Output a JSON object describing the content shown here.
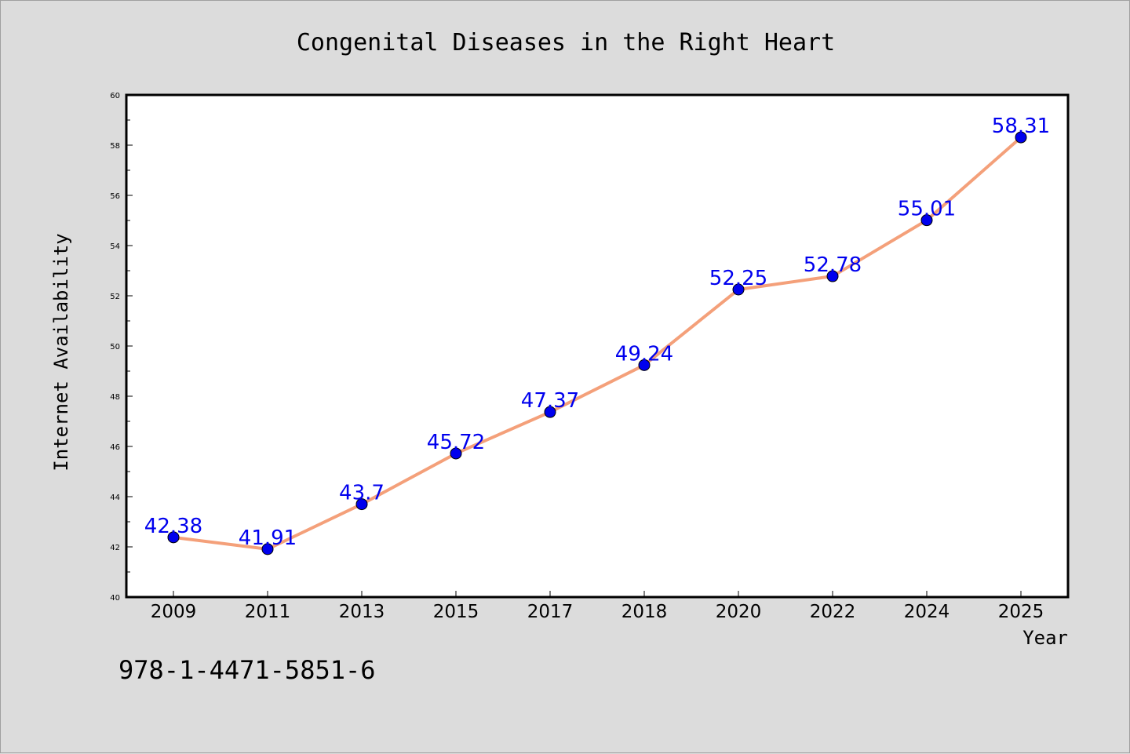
{
  "chart_data": {
    "type": "line",
    "title": "Congenital Diseases in the Right Heart",
    "xlabel": "Year",
    "ylabel": "Internet Availability",
    "categories": [
      "2009",
      "2011",
      "2013",
      "2015",
      "2017",
      "2018",
      "2020",
      "2022",
      "2024",
      "2025"
    ],
    "series": [
      {
        "values": [
          42.38,
          41.91,
          43.7,
          45.72,
          47.37,
          49.24,
          52.25,
          52.78,
          55.01,
          58.31
        ],
        "data_labels": [
          "42.38",
          "41.91",
          "43.7",
          "45.72",
          "47.37",
          "49.24",
          "52.25",
          "52.78",
          "55.01",
          "58.31"
        ]
      }
    ],
    "ylim": [
      40,
      60
    ],
    "yticks": [
      "40",
      "42",
      "44",
      "46",
      "48",
      "50",
      "52",
      "54",
      "56",
      "58",
      "60"
    ],
    "grid": false,
    "colors": {
      "line": "#f4a07a",
      "marker": "#0000ee",
      "label": "#0000ee",
      "background": "#dcdcdc",
      "plot_area": "#ffffff"
    }
  },
  "footer": {
    "code": "978-1-4471-5851-6"
  }
}
